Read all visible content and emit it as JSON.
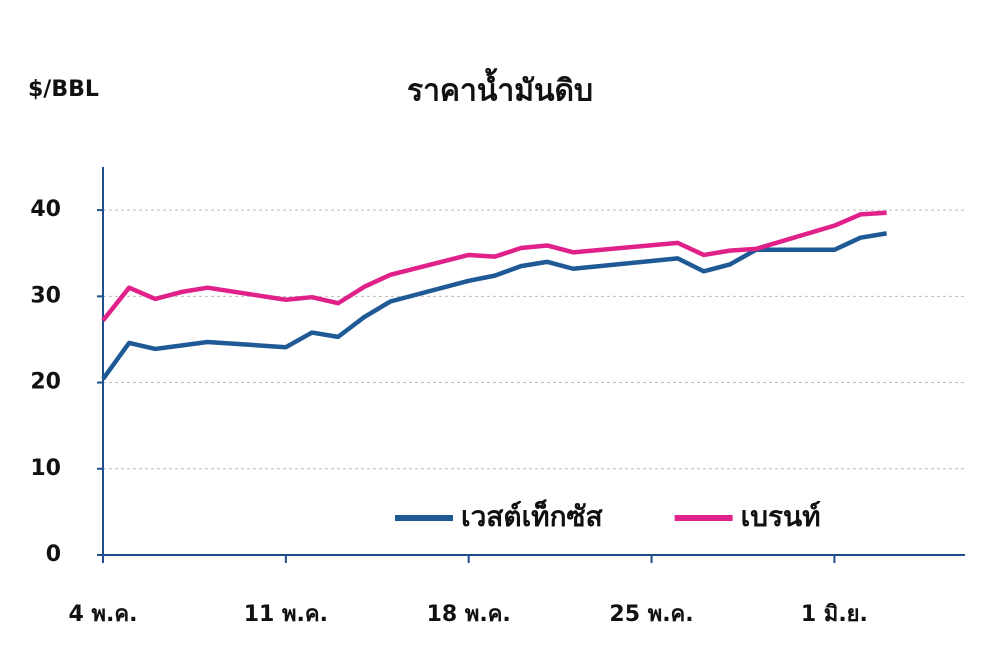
{
  "chart_data": {
    "type": "line",
    "title": "ราคาน้ำมันดิบ",
    "y_label": "$/BBL",
    "x": [
      4,
      5,
      6,
      7,
      8,
      11,
      12,
      13,
      14,
      15,
      18,
      19,
      20,
      21,
      22,
      26,
      27,
      28,
      29,
      32,
      33,
      34
    ],
    "xlim": [
      4,
      37
    ],
    "xticks": [
      {
        "value": 4,
        "label": "4 พ.ค."
      },
      {
        "value": 11,
        "label": "11 พ.ค."
      },
      {
        "value": 18,
        "label": "18 พ.ค."
      },
      {
        "value": 25,
        "label": "25 พ.ค."
      },
      {
        "value": 32,
        "label": "1 มิ.ย."
      }
    ],
    "ylim": [
      0,
      45
    ],
    "yticks": [
      0,
      10,
      20,
      30,
      40
    ],
    "grid": true,
    "legend": "bottom-right",
    "series": [
      {
        "name": "เวสต์เท็กซัส",
        "color": "#1f5a96",
        "values": [
          20.4,
          24.6,
          23.9,
          24.3,
          24.7,
          24.1,
          25.8,
          25.3,
          27.6,
          29.4,
          31.8,
          32.4,
          33.5,
          34.0,
          33.2,
          34.4,
          32.9,
          33.7,
          35.4,
          35.4,
          36.8,
          37.3
        ]
      },
      {
        "name": "เบรนท์",
        "color": "#e0218a",
        "values": [
          27.2,
          31.0,
          29.7,
          30.5,
          31.0,
          29.6,
          29.9,
          29.2,
          31.1,
          32.5,
          34.8,
          34.6,
          35.6,
          35.9,
          35.1,
          36.2,
          34.8,
          35.3,
          35.5,
          38.2,
          39.5,
          39.7
        ]
      }
    ]
  }
}
